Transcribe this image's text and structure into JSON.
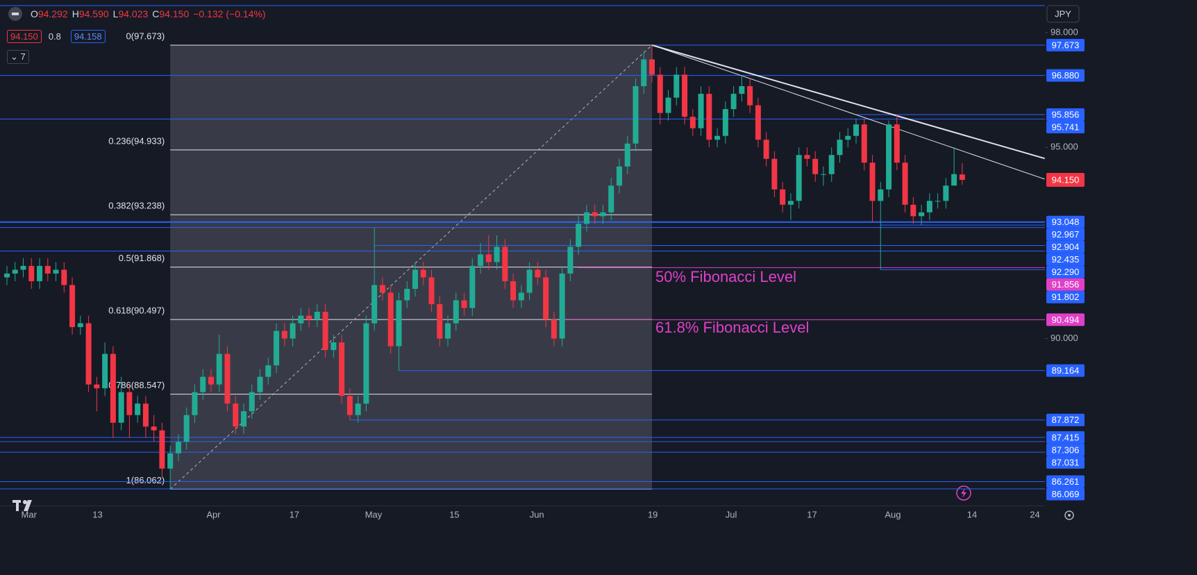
{
  "chart_data": {
    "type": "candlestick",
    "header": {
      "ohlc": [
        {
          "key": "O",
          "value": "94.292"
        },
        {
          "key": "H",
          "value": "94.590"
        },
        {
          "key": "L",
          "value": "94.023"
        },
        {
          "key": "C",
          "value": "94.150"
        }
      ],
      "change": "−0.132 (−0.14%)"
    },
    "legend": {
      "price": "94.150",
      "ratio": "0.8",
      "price2": "94.158",
      "collapsed": "7"
    },
    "currency": "JPY",
    "xlim": [
      -0.85,
      127.13
    ],
    "xticks": [
      {
        "value": 2.7,
        "label": "Mar"
      },
      {
        "value": 11.1,
        "label": "13"
      },
      {
        "value": 25.3,
        "label": "Apr"
      },
      {
        "value": 35.2,
        "label": "17"
      },
      {
        "value": 44.9,
        "label": "May"
      },
      {
        "value": 54.8,
        "label": "15"
      },
      {
        "value": 64.9,
        "label": "Jun"
      },
      {
        "value": 79.1,
        "label": "19"
      },
      {
        "value": 88.7,
        "label": "Jul"
      },
      {
        "value": 98.6,
        "label": "17"
      },
      {
        "value": 108.5,
        "label": "Aug"
      },
      {
        "value": 118.2,
        "label": "14"
      },
      {
        "value": 125.9,
        "label": "24"
      }
    ],
    "ylim": [
      85.634,
      98.853
    ],
    "yticks": [
      {
        "value": 98,
        "label": "98.000"
      },
      {
        "value": 95,
        "label": "95.000"
      },
      {
        "value": 90,
        "label": "90.000"
      }
    ],
    "up_color": "#22ab94",
    "down_color": "#f23645",
    "open": [
      91.6,
      91.7,
      91.8,
      91.9,
      91.5,
      91.9,
      91.7,
      91.8,
      91.4,
      90.3,
      90.4,
      88.8,
      88.7,
      89.6,
      87.8,
      88.6,
      88.0,
      88.3,
      87.7,
      87.6,
      86.6,
      87.0,
      87.3,
      88.0,
      88.6,
      89.0,
      88.8,
      89.6,
      88.3,
      87.7,
      88.1,
      88.6,
      89.0,
      89.3,
      90.2,
      90.0,
      90.4,
      90.6,
      90.5,
      90.7,
      89.7,
      89.9,
      88.5,
      88.0,
      88.3,
      90.4,
      91.4,
      91.2,
      89.8,
      91.0,
      91.3,
      91.8,
      91.6,
      90.9,
      90.0,
      90.4,
      91.0,
      90.8,
      91.9,
      92.2,
      92.0,
      92.4,
      91.5,
      91.0,
      91.2,
      91.8,
      91.6,
      90.5,
      90.0,
      91.7,
      92.4,
      93.0,
      93.3,
      93.2,
      93.3,
      94.0,
      94.5,
      95.1,
      96.6,
      97.3,
      96.9,
      95.9,
      96.3,
      96.9,
      95.8,
      95.5,
      96.4,
      95.2,
      95.3,
      96.0,
      96.4,
      96.6,
      96.1,
      95.2,
      94.7,
      93.9,
      93.5,
      93.6,
      94.8,
      94.7,
      94.3,
      94.3,
      94.8,
      95.2,
      95.3,
      95.6,
      94.6,
      93.6,
      93.9,
      95.6,
      94.6,
      93.5,
      93.2,
      93.3,
      93.6,
      93.6,
      94.0,
      94.292
    ],
    "high": [
      91.9,
      92.0,
      92.1,
      92.1,
      92.1,
      92.1,
      92.0,
      92.0,
      91.6,
      90.6,
      90.6,
      89.0,
      89.9,
      89.8,
      89.0,
      88.8,
      88.5,
      88.5,
      88.0,
      87.8,
      87.2,
      87.5,
      88.2,
      88.8,
      89.2,
      89.2,
      90.1,
      89.8,
      88.5,
      88.3,
      88.8,
      89.2,
      89.5,
      90.4,
      90.4,
      90.6,
      90.8,
      90.8,
      90.9,
      90.9,
      90.1,
      90.1,
      88.7,
      88.5,
      90.6,
      92.904,
      91.6,
      91.4,
      91.2,
      91.5,
      92.0,
      92.0,
      91.8,
      91.1,
      90.6,
      91.2,
      91.2,
      92.1,
      92.5,
      92.7,
      92.7,
      92.6,
      91.7,
      91.4,
      92.0,
      92.0,
      91.8,
      90.7,
      91.9,
      92.6,
      93.2,
      93.5,
      93.5,
      93.5,
      94.2,
      94.7,
      95.3,
      96.8,
      97.5,
      97.673,
      97.1,
      96.5,
      97.1,
      97.1,
      96.0,
      96.6,
      96.6,
      95.5,
      96.2,
      96.6,
      96.88,
      96.8,
      96.3,
      95.4,
      94.9,
      94.1,
      93.8,
      95.0,
      95.0,
      94.9,
      94.5,
      95.0,
      95.4,
      95.5,
      95.741,
      95.741,
      94.8,
      94.1,
      95.7,
      95.856,
      94.8,
      93.7,
      93.5,
      93.8,
      93.8,
      94.2,
      95.0,
      94.59
    ],
    "low": [
      91.4,
      91.5,
      91.6,
      91.3,
      91.3,
      91.5,
      91.5,
      91.2,
      90.1,
      90.1,
      88.6,
      88.1,
      88.5,
      87.4,
      87.6,
      87.4,
      87.8,
      87.4,
      87.3,
      86.4,
      86.062,
      86.8,
      87.1,
      87.8,
      88.4,
      88.6,
      88.6,
      88.1,
      87.5,
      87.5,
      87.9,
      88.4,
      88.8,
      89.1,
      89.8,
      89.8,
      90.2,
      90.3,
      90.3,
      89.5,
      89.5,
      88.3,
      87.872,
      87.8,
      88.1,
      90.2,
      91.0,
      89.6,
      89.164,
      90.8,
      91.1,
      91.4,
      90.7,
      89.8,
      89.8,
      90.2,
      90.6,
      90.6,
      91.7,
      91.8,
      91.8,
      91.3,
      90.8,
      90.8,
      91.0,
      91.4,
      90.3,
      89.8,
      89.8,
      91.5,
      92.2,
      92.8,
      93.0,
      93.0,
      93.1,
      93.8,
      94.3,
      94.9,
      96.4,
      96.7,
      95.6,
      95.7,
      96.1,
      95.6,
      95.3,
      95.3,
      95.0,
      95.0,
      95.1,
      95.8,
      96.2,
      95.9,
      95.0,
      94.5,
      93.7,
      93.3,
      93.1,
      93.4,
      94.5,
      94.1,
      94.0,
      94.1,
      94.6,
      95.0,
      95.1,
      94.4,
      93.048,
      91.802,
      93.7,
      94.4,
      93.3,
      93.0,
      92.967,
      93.1,
      93.4,
      93.4,
      94.1,
      94.023
    ],
    "close": [
      91.7,
      91.8,
      91.9,
      91.5,
      91.9,
      91.7,
      91.8,
      91.4,
      90.3,
      90.4,
      88.8,
      88.7,
      89.6,
      87.8,
      88.6,
      88.0,
      88.3,
      87.7,
      87.6,
      86.6,
      87.0,
      87.3,
      88.0,
      88.6,
      89.0,
      88.8,
      89.6,
      88.3,
      87.7,
      88.1,
      88.6,
      89.0,
      89.3,
      90.2,
      90.0,
      90.4,
      90.6,
      90.5,
      90.7,
      89.7,
      89.9,
      88.5,
      88.0,
      88.3,
      90.4,
      91.4,
      91.2,
      89.8,
      91.0,
      91.3,
      91.8,
      91.6,
      90.9,
      90.0,
      90.4,
      91.0,
      90.8,
      91.9,
      92.2,
      92.0,
      92.4,
      91.5,
      91.0,
      91.2,
      91.8,
      91.6,
      90.5,
      90.0,
      91.7,
      92.4,
      93.0,
      93.3,
      93.2,
      93.3,
      94.0,
      94.5,
      95.1,
      96.6,
      97.3,
      96.9,
      95.9,
      96.3,
      96.9,
      95.8,
      95.5,
      96.4,
      95.2,
      95.3,
      96.0,
      96.4,
      96.6,
      96.1,
      95.2,
      94.7,
      93.9,
      93.5,
      93.6,
      94.8,
      94.7,
      94.3,
      94.3,
      94.8,
      95.2,
      95.3,
      95.6,
      94.6,
      93.6,
      93.9,
      95.6,
      94.6,
      93.5,
      93.2,
      93.3,
      93.6,
      93.6,
      94.0,
      94.3,
      94.15
    ],
    "last": {
      "value": 94.15,
      "label": "94.150"
    },
    "fib": {
      "start": 20,
      "end": 79,
      "levels": [
        {
          "value": 97.673,
          "label": "0(97.673)"
        },
        {
          "value": 94.933,
          "label": "0.236(94.933)"
        },
        {
          "value": 93.238,
          "label": "0.382(93.238)"
        },
        {
          "value": 91.868,
          "label": "0.5(91.868)"
        },
        {
          "value": 90.497,
          "label": "0.618(90.497)"
        },
        {
          "value": 88.547,
          "label": "0.786(88.547)"
        },
        {
          "value": 86.062,
          "label": "1(86.062)"
        }
      ]
    },
    "levels": [
      {
        "price": 97.673,
        "start": 79,
        "color": "#2962ff"
      },
      {
        "price": {
          "value": 96.88,
          "label": "96.880"
        },
        "color": "#2962ff"
      },
      {
        "price": 95.856,
        "start": 104,
        "color": "#2962ff"
      },
      {
        "price": 95.741,
        "color": "#2962ff"
      },
      {
        "price": 93.048,
        "color": "#2962ff"
      },
      {
        "price": 92.967,
        "start": 107,
        "color": "#2962ff"
      },
      {
        "price": 92.904,
        "color": "#2962ff"
      },
      {
        "price": 92.435,
        "start": 45,
        "color": "#2962ff"
      },
      {
        "price": {
          "value": 92.29,
          "label": "92.290"
        },
        "color": "#2962ff"
      },
      {
        "price": 91.856,
        "start": 70,
        "color": "#e040c8"
      },
      {
        "price": 91.802,
        "start": 107,
        "color": "#2962ff"
      },
      {
        "price": 90.494,
        "start": 68,
        "color": "#e040c8"
      },
      {
        "price": 89.164,
        "start": 48,
        "color": "#2962ff"
      },
      {
        "price": 87.872,
        "start": 42,
        "color": "#2962ff"
      },
      {
        "price": 87.415,
        "color": "#2962ff"
      },
      {
        "price": 87.306,
        "color": "#2962ff"
      },
      {
        "price": 87.031,
        "color": "#2962ff"
      },
      {
        "price": 86.261,
        "color": "#2962ff"
      },
      {
        "price": 86.069,
        "color": "#2962ff"
      }
    ],
    "trendlines": [
      {
        "x": [
          79,
          127.1
        ],
        "y": [
          97.673,
          94.71
        ]
      },
      {
        "x": [
          79,
          127.1
        ],
        "y": [
          97.673,
          94.17
        ]
      }
    ],
    "annotations": [
      {
        "text": "50% Fibonacci Level",
        "color": "#e040c8"
      },
      {
        "text": "61.8% Fibonacci Level",
        "color": "#e040c8"
      }
    ]
  }
}
